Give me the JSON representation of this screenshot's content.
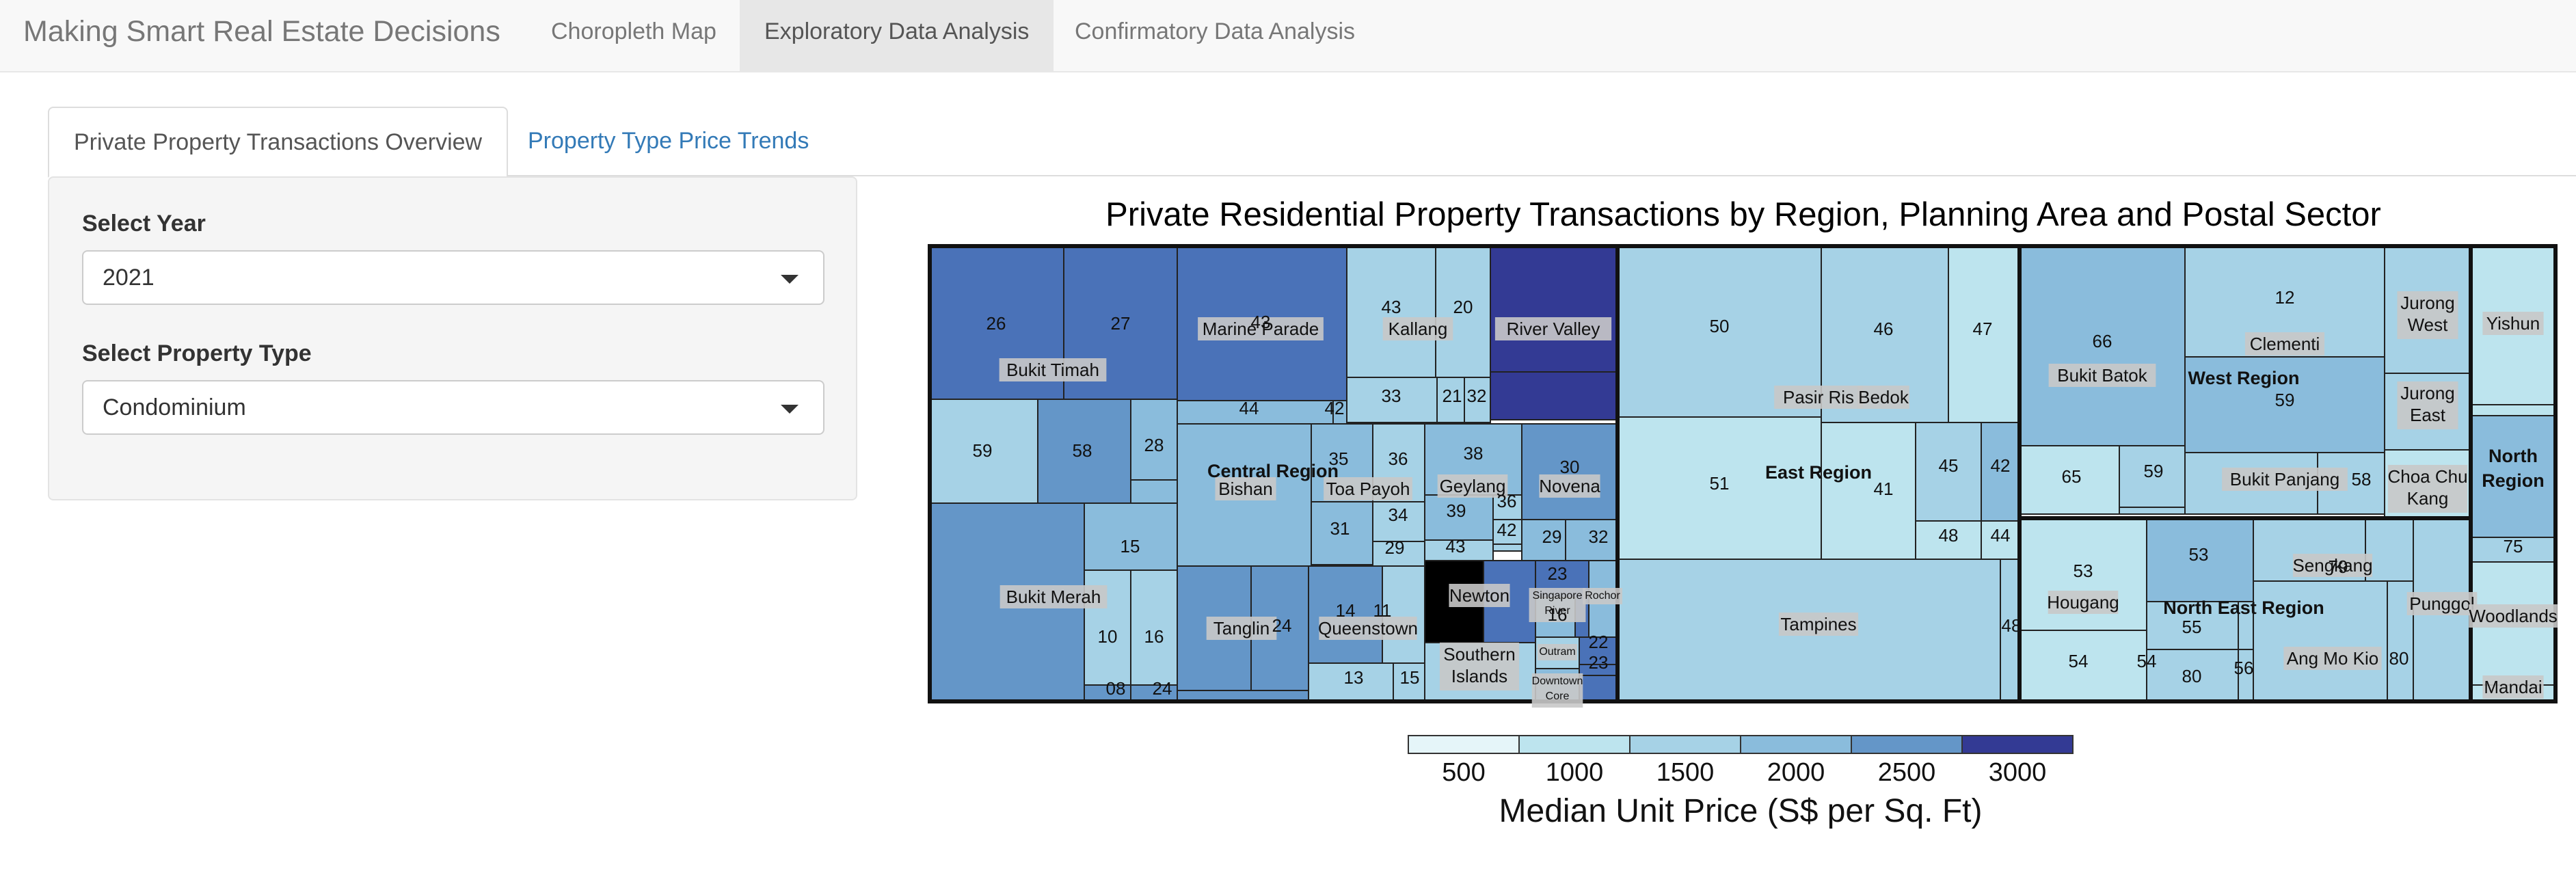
{
  "navbar": {
    "brand": "Making Smart Real Estate Decisions",
    "items": [
      "Choropleth Map",
      "Exploratory Data Analysis",
      "Confirmatory Data Analysis"
    ],
    "active_index": 1
  },
  "tabs": {
    "items": [
      "Private Property Transactions Overview",
      "Property Type Price Trends"
    ],
    "active_index": 0
  },
  "sidebar": {
    "year_label": "Select Year",
    "year_value": "2021",
    "type_label": "Select Property Type",
    "type_value": "Condominium"
  },
  "chart_data": {
    "type": "treemap",
    "title": "Private Residential Property Transactions by Region, Planning Area and Postal Sector",
    "regions": [
      "Central Region",
      "East Region",
      "West Region",
      "North East Region",
      "North Region"
    ],
    "planning_areas": [
      "Bukit Timah",
      "Marine Parade",
      "Kallang",
      "River Valley",
      "Bishan",
      "Toa Payoh",
      "Geylang",
      "Novena",
      "Bukit Merah",
      "Tanglin",
      "Queenstown",
      "Newton",
      "Southern Islands",
      "Singapore River",
      "Rochor",
      "Outram",
      "Downtown Core",
      "Pasir Ris",
      "Bedok",
      "Tampines",
      "Bukit Batok",
      "Clementi",
      "Jurong West",
      "Jurong East",
      "Bukit Panjang",
      "Choa Chu Kang",
      "Hougang",
      "Sengkang",
      "Ang Mo Kio",
      "Punggol",
      "Yishun",
      "Woodlands",
      "Mandai"
    ],
    "postal_sectors": [
      "26",
      "27",
      "59",
      "58",
      "28",
      "43",
      "44",
      "42",
      "43",
      "20",
      "33",
      "21",
      "32",
      "35",
      "36",
      "38",
      "30",
      "31",
      "34",
      "39",
      "36",
      "42",
      "29",
      "29",
      "32",
      "43",
      "15",
      "10",
      "16",
      "08",
      "24",
      "24",
      "14",
      "11",
      "13",
      "15",
      "23",
      "16",
      "22",
      "23",
      "50",
      "46",
      "47",
      "51",
      "41",
      "45",
      "42",
      "48",
      "44",
      "48",
      "66",
      "12",
      "59",
      "65",
      "59",
      "58",
      "53",
      "53",
      "55",
      "79",
      "54",
      "80",
      "80",
      "54",
      "56",
      "75"
    ],
    "legend": {
      "title": "Median Unit Price (S$ per Sq. Ft)",
      "ticks": [
        "500",
        "1000",
        "1500",
        "2000",
        "2500",
        "3000"
      ],
      "colors": [
        "#e5f5f9",
        "#bde4ee",
        "#a6d2e6",
        "#8abcdc",
        "#6496c8",
        "#4a72b8",
        "#333a94"
      ]
    }
  }
}
